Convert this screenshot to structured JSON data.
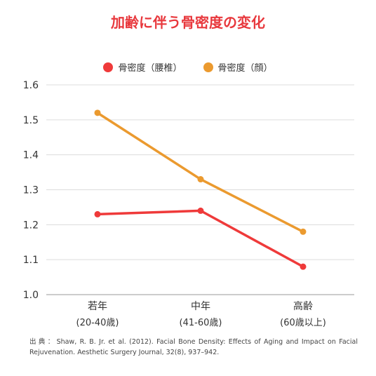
{
  "title": "加齢に伴う骨密度の変化",
  "source": {
    "label": "出典：",
    "text": "Shaw, R. B. Jr. et al. (2012). Facial Bone Density: Effects of Aging and Impact on Facial Rejuvenation. Aesthetic Surgery Journal, 32(8), 937–942."
  },
  "chart_data": {
    "type": "line",
    "title": "加齢に伴う骨密度の変化",
    "categories": [
      "若年",
      "中年",
      "高齢"
    ],
    "category_sublabels": [
      "(20-40歳)",
      "(41-60歳)",
      "(60歳以上)"
    ],
    "series": [
      {
        "name": "骨密度（腰椎）",
        "color": "#ef3a3a",
        "values": [
          1.23,
          1.24,
          1.08
        ]
      },
      {
        "name": "骨密度（顔）",
        "color": "#eb9a2f",
        "values": [
          1.52,
          1.33,
          1.18
        ]
      }
    ],
    "ylim": [
      1.0,
      1.6
    ],
    "yticks": [
      "1.0",
      "1.1",
      "1.2",
      "1.3",
      "1.4",
      "1.5",
      "1.6"
    ],
    "xlabel": "",
    "ylabel": "",
    "grid": true,
    "legend_position": "top-center"
  }
}
